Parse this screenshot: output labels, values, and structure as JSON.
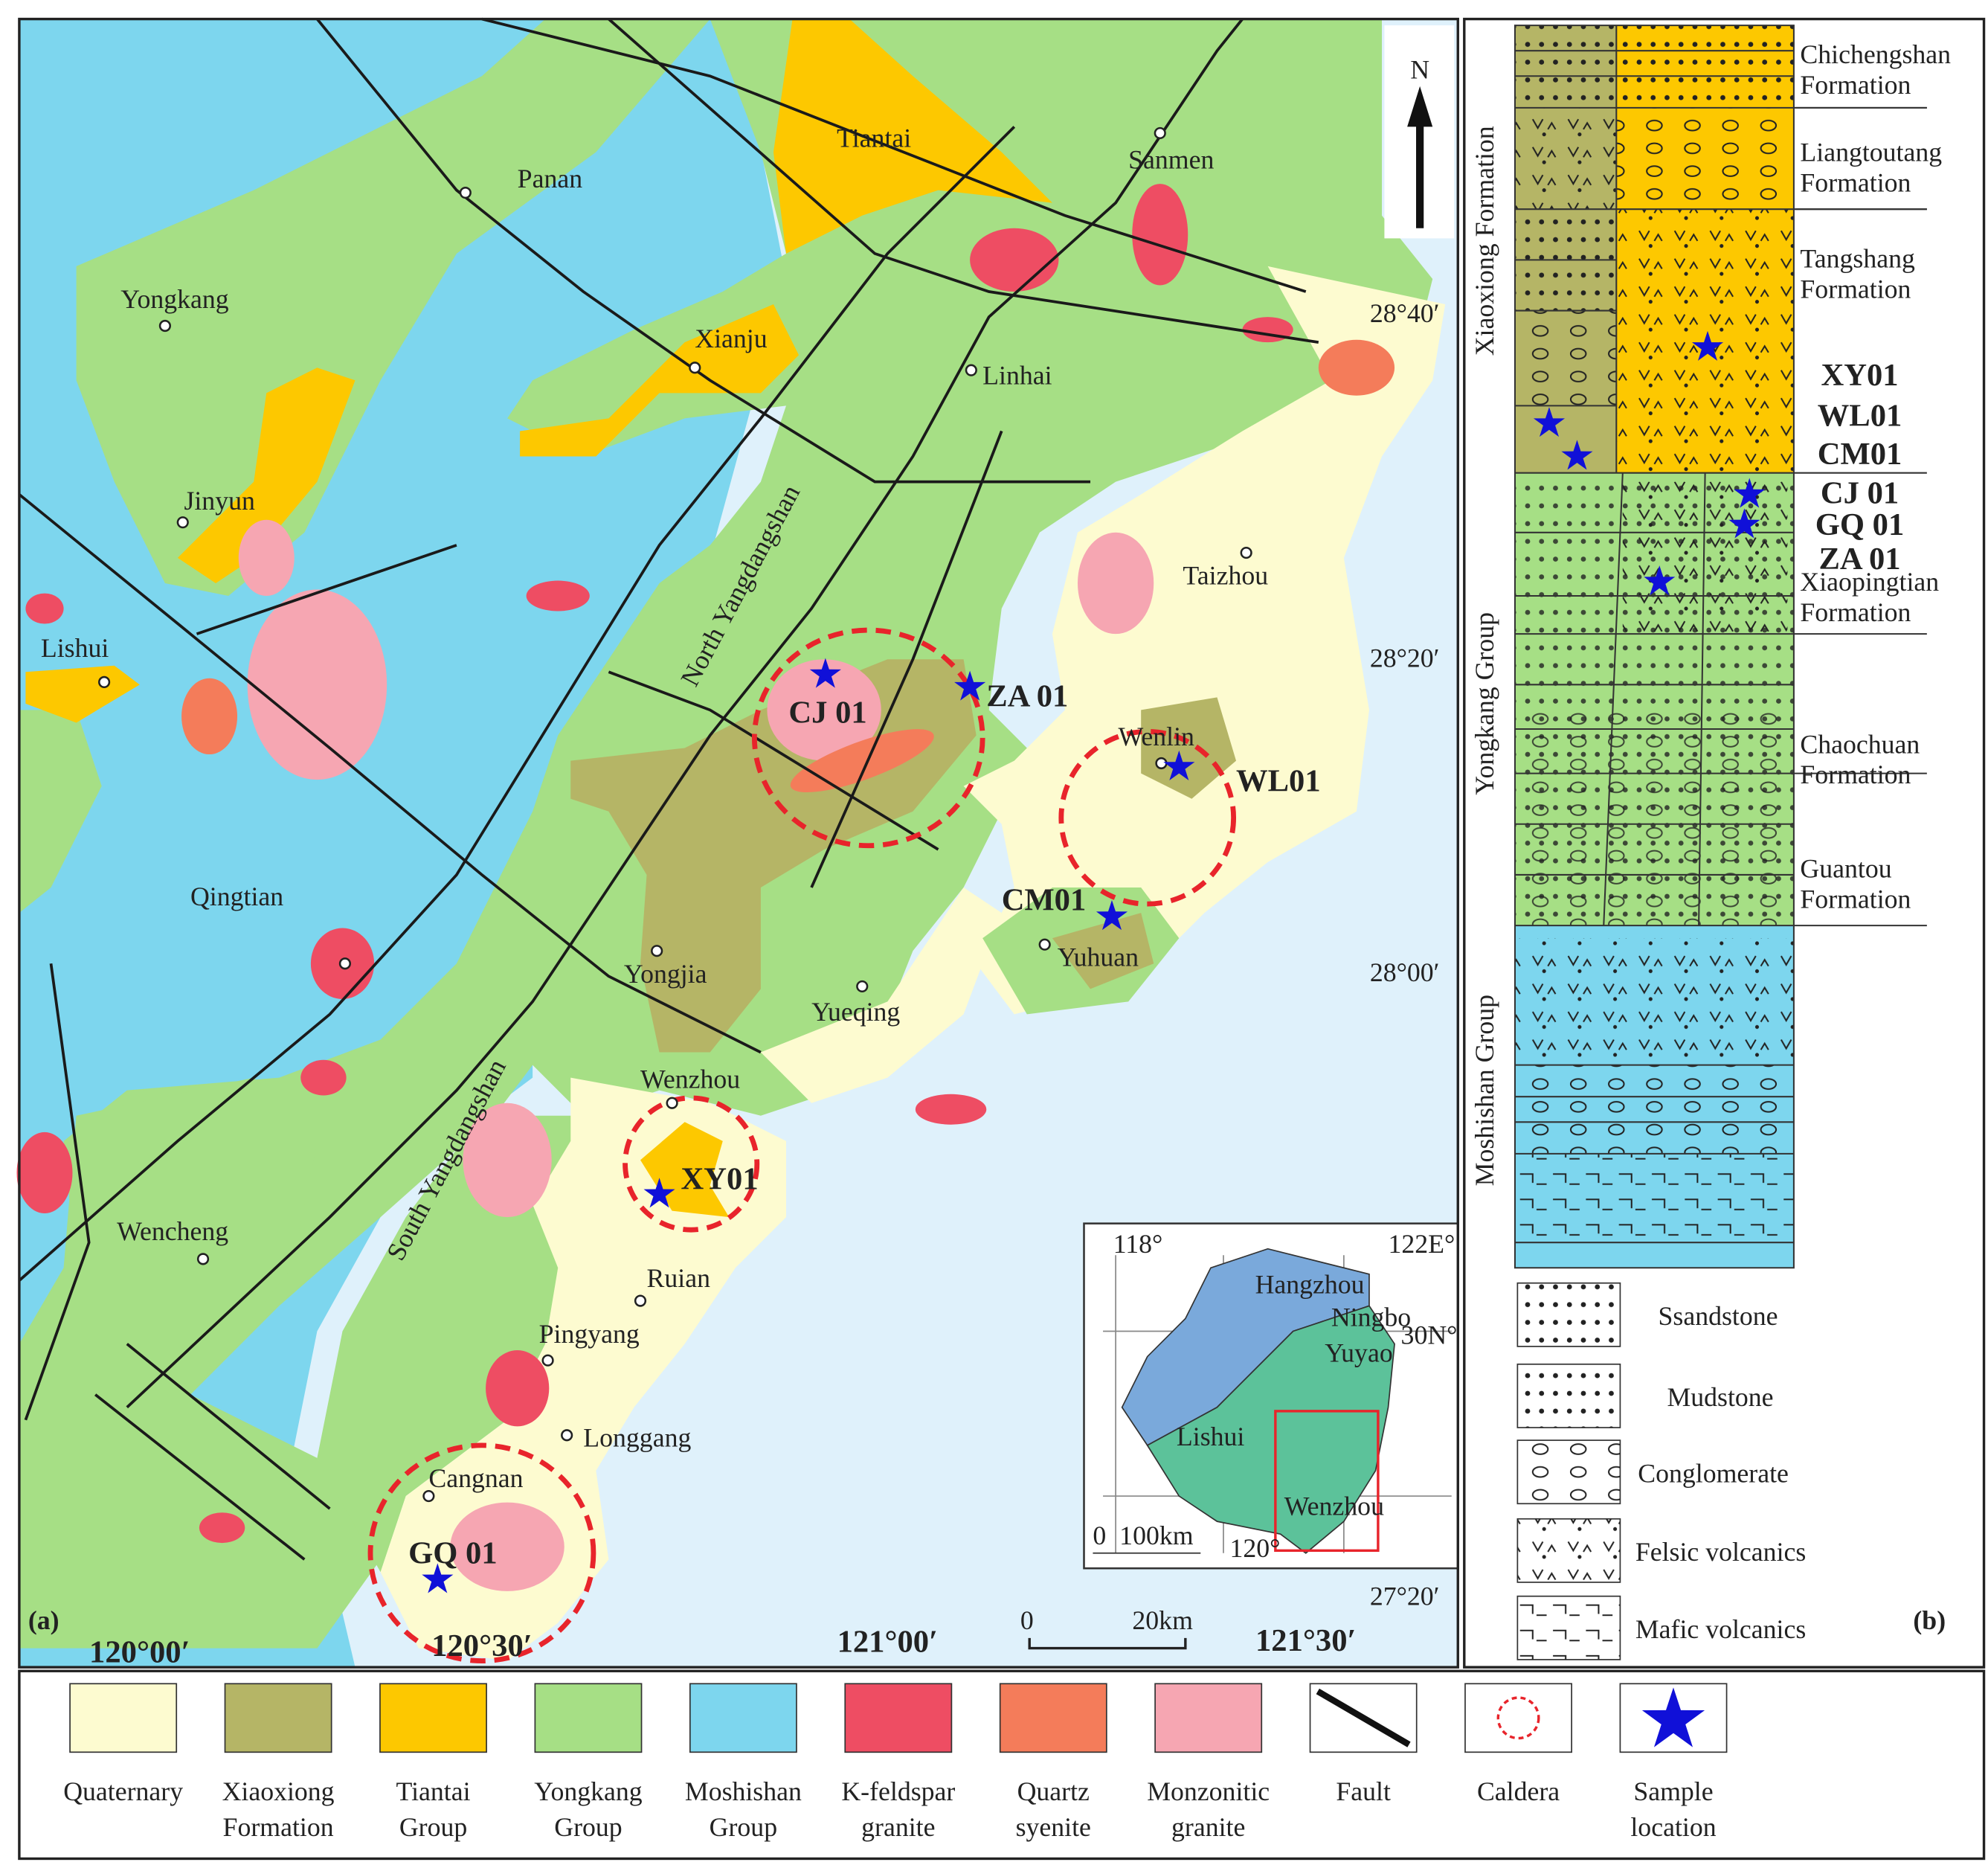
{
  "map": {
    "panel_label": "(a)",
    "north": "N",
    "places": [
      "Panan",
      "Yongkang",
      "Xianju",
      "Tiantai",
      "Sanmen",
      "Linhai",
      "Jinyun",
      "Lishui",
      "Taizhou",
      "Qingtian",
      "Yongjia",
      "Yueqing",
      "Wenzhou",
      "Wenlin",
      "Yuhuan",
      "Ruian",
      "Pingyang",
      "Longgang",
      "Cangnan",
      "Wencheng"
    ],
    "samples": [
      "CJ 01",
      "ZA 01",
      "WL01",
      "CM01",
      "XY01",
      "GQ 01"
    ],
    "ranges": [
      "North Yangdangshan",
      "South Yangdangshan"
    ],
    "latitudes": [
      "28°40′",
      "28°20′",
      "28°00′",
      "27°20′"
    ],
    "longitudes": [
      "120°00′",
      "120°30′",
      "121°00′",
      "121°30′"
    ],
    "scale": [
      "0",
      "20km"
    ]
  },
  "inset": {
    "labels": [
      "118°",
      "122E°",
      "30N°",
      "120°",
      "0  100km"
    ],
    "places": [
      "Hangzhou",
      "Ningbo",
      "Yuyao",
      "Lishui",
      "Wenzhou"
    ]
  },
  "column": {
    "panel_label": "(b)",
    "groups": [
      "Xiaoxiong Formation",
      "Yongkang Group",
      "Moshishan Group"
    ],
    "formations": [
      [
        "Chichengshan",
        "Formation"
      ],
      [
        "Liangtoutang",
        "Formation"
      ],
      [
        "Tangshang",
        "Formation"
      ],
      [
        "Xiaopingtian",
        "Formation"
      ],
      [
        "Chaochuan",
        "Formation"
      ],
      [
        "Guantou",
        "Formation"
      ]
    ],
    "samples": [
      "XY01",
      "WL01",
      "CM01",
      "CJ 01",
      "GQ 01",
      "ZA 01"
    ]
  },
  "lithology_legend": [
    "Ssandstone",
    "Mudstone",
    "Conglomerate",
    "Felsic volcanics",
    "Mafic volcanics"
  ],
  "legend": [
    [
      "Quaternary"
    ],
    [
      "Xiaoxiong",
      "Formation"
    ],
    [
      "Tiantai",
      "Group"
    ],
    [
      "Yongkang",
      "Group"
    ],
    [
      "Moshishan",
      "Group"
    ],
    [
      "K-feldspar",
      "granite"
    ],
    [
      "Quartz",
      "syenite"
    ],
    [
      "Monzonitic",
      "granite"
    ],
    [
      "Fault"
    ],
    [
      "Caldera"
    ],
    [
      "Sample",
      "location"
    ]
  ]
}
